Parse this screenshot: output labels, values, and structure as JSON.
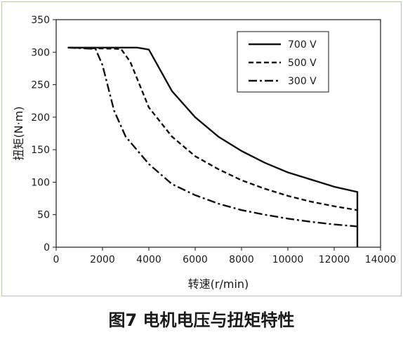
{
  "chart_data": {
    "type": "line",
    "caption": "图7 电机电压与扭矩特性",
    "xlabel": "转速(r/min)",
    "ylabel": "扭矩(N·m)",
    "xlim": [
      0,
      14000
    ],
    "ylim": [
      0,
      350
    ],
    "xticks": [
      0,
      2000,
      4000,
      6000,
      8000,
      10000,
      12000,
      14000
    ],
    "yticks": [
      0,
      50,
      100,
      150,
      200,
      250,
      300,
      350
    ],
    "grid": false,
    "legend_position": "top-right",
    "series": [
      {
        "name": "700 V",
        "style": "solid",
        "x": [
          500,
          3500,
          4000,
          5000,
          6000,
          7000,
          8000,
          9000,
          10000,
          11000,
          12000,
          13000,
          13000
        ],
        "y": [
          307,
          307,
          304,
          240,
          200,
          170,
          148,
          130,
          115,
          104,
          93,
          85,
          0
        ]
      },
      {
        "name": "500 V",
        "style": "dashed",
        "x": [
          500,
          2800,
          3200,
          4000,
          5000,
          6000,
          7000,
          8000,
          9000,
          10000,
          11000,
          12000,
          13000
        ],
        "y": [
          307,
          305,
          285,
          215,
          170,
          140,
          120,
          103,
          90,
          79,
          70,
          63,
          57
        ]
      },
      {
        "name": "300 V",
        "style": "dashdot",
        "x": [
          500,
          1700,
          2000,
          2500,
          3000,
          4000,
          5000,
          6000,
          7000,
          8000,
          9000,
          10000,
          11000,
          12000,
          13000
        ],
        "y": [
          307,
          305,
          280,
          210,
          170,
          128,
          97,
          80,
          67,
          57,
          50,
          44,
          39,
          35,
          32
        ]
      }
    ]
  }
}
